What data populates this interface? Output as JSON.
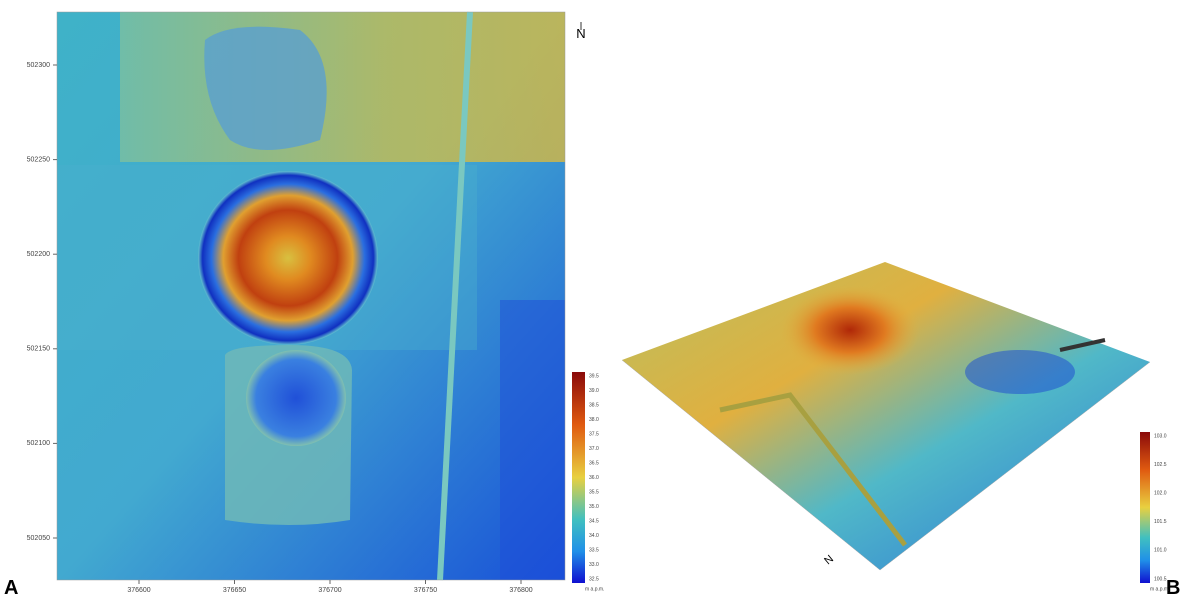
{
  "panel_a": {
    "label": "A",
    "north": "N",
    "y_axis": [
      "502300",
      "502250",
      "502200",
      "502150",
      "502100",
      "502050"
    ],
    "x_axis": [
      "376600",
      "376650",
      "376700",
      "376750",
      "376800"
    ],
    "legend": {
      "ticks": [
        "39.5",
        "39.0",
        "38.5",
        "38.0",
        "37.5",
        "37.0",
        "36.5",
        "36.0",
        "35.5",
        "35.0",
        "34.5",
        "34.0",
        "33.5",
        "33.0",
        "32.5"
      ],
      "unit": "m a.p.m."
    }
  },
  "panel_b": {
    "label": "B",
    "north": "N",
    "legend": {
      "ticks": [
        "103.0",
        "102.5",
        "102.0",
        "101.5",
        "101.0",
        "100.5"
      ],
      "unit": "m a.p.m."
    }
  }
}
